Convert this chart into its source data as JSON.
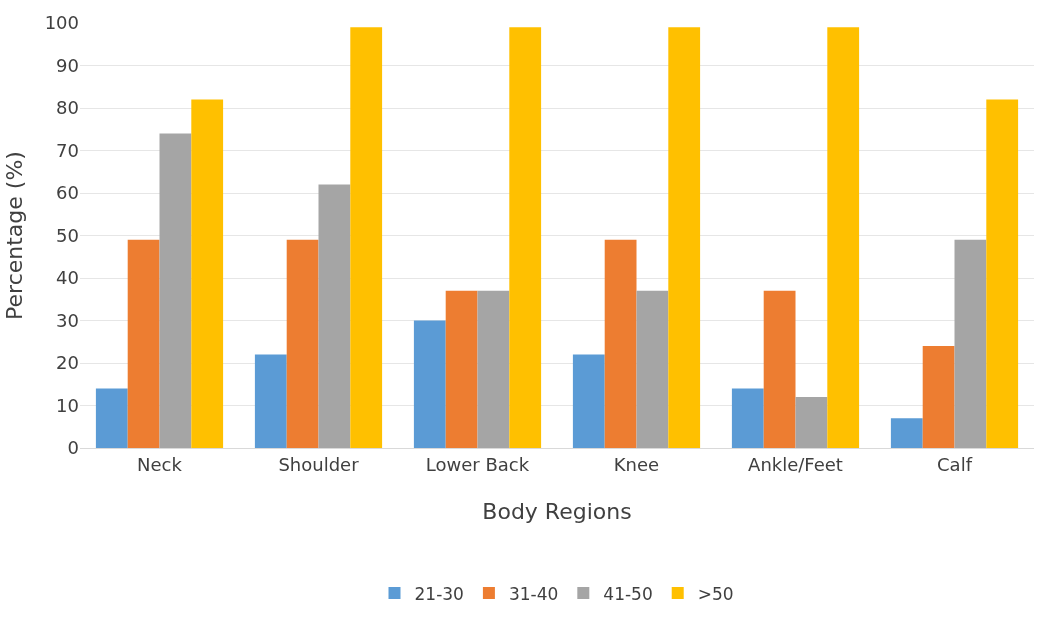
{
  "chart_data": {
    "type": "bar",
    "xlabel": "Body Regions",
    "ylabel": "Percentage (%)",
    "categories": [
      "Neck",
      "Shoulder",
      "Lower Back",
      "Knee",
      "Ankle/Feet",
      "Calf"
    ],
    "series": [
      {
        "name": "21-30",
        "color": "#5b9bd5",
        "values": [
          14,
          22,
          30,
          22,
          14,
          7
        ]
      },
      {
        "name": "31-40",
        "color": "#ed7d31",
        "values": [
          49,
          49,
          37,
          49,
          37,
          24
        ]
      },
      {
        "name": "41-50",
        "color": "#a5a5a5",
        "values": [
          74,
          62,
          37,
          37,
          12,
          49
        ]
      },
      {
        "name": ">50",
        "color": "#ffc000",
        "values": [
          82,
          99,
          99,
          99,
          99,
          82
        ]
      }
    ],
    "ylim": [
      0,
      100
    ],
    "yticks": [
      0,
      10,
      20,
      30,
      40,
      50,
      60,
      70,
      80,
      90,
      100
    ],
    "grid": "y",
    "legend": "bottom"
  }
}
